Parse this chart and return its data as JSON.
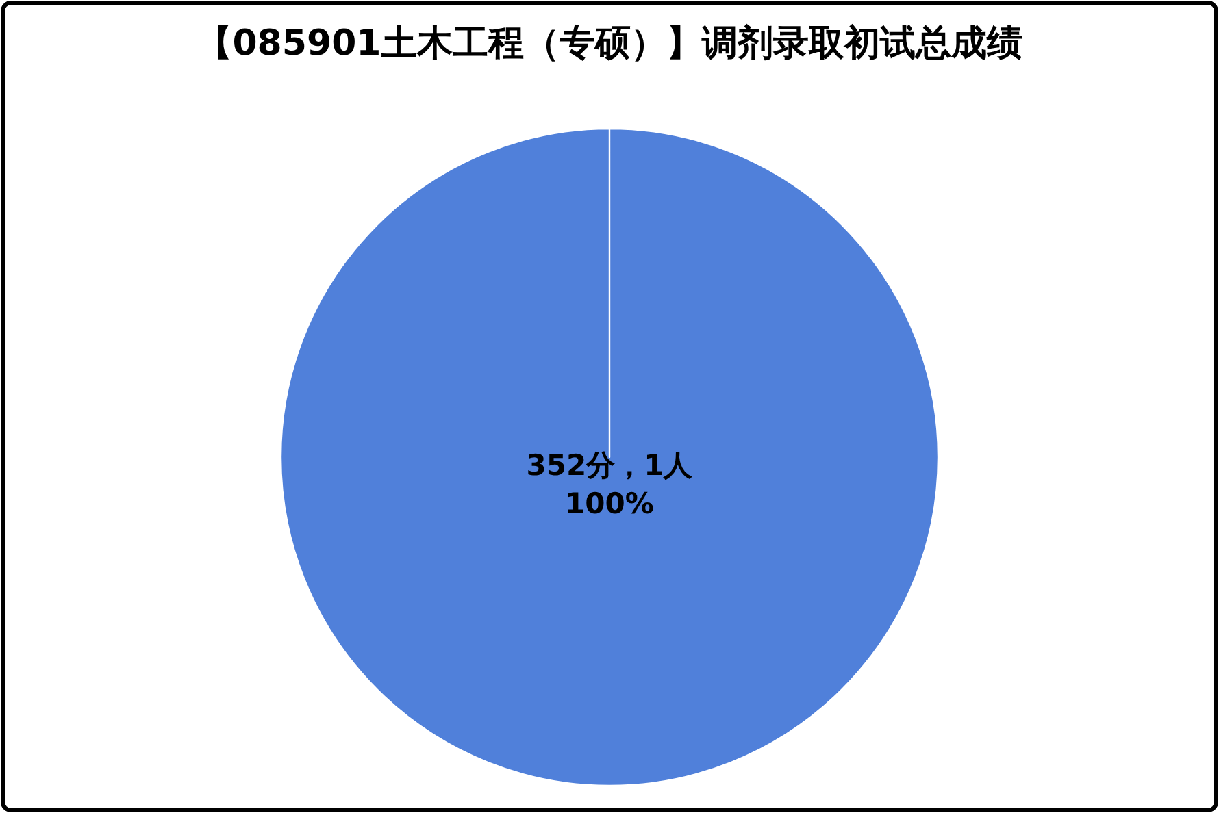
{
  "chart_data": {
    "type": "pie",
    "title": "【085901土木工程（专硕）】调剂录取初试总成绩",
    "categories": [
      "352分，1人"
    ],
    "values": [
      100
    ],
    "colors": [
      "#5080da"
    ],
    "value_labels": [
      "100%"
    ]
  }
}
